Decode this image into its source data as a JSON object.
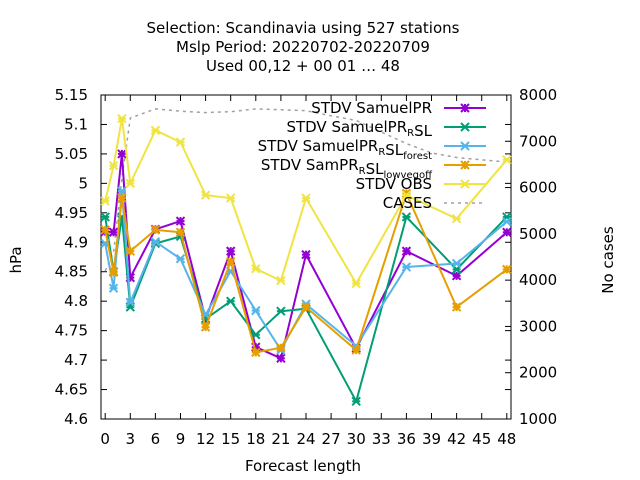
{
  "chart_data": {
    "type": "line",
    "title_lines": [
      "Selection: Scandinavia using   527 stations",
      "Mslp   Period: 20220702-20220709",
      "Used  00,12  + 00 01 … 48"
    ],
    "xlabel": "Forecast length",
    "ylabel": "hPa",
    "y2label": "No cases",
    "x_ticks": [
      0,
      3,
      6,
      9,
      12,
      15,
      18,
      21,
      24,
      27,
      30,
      33,
      36,
      39,
      42,
      45,
      48
    ],
    "xlim": [
      -0.5,
      48.5
    ],
    "ylim": [
      4.6,
      5.15
    ],
    "y_ticks": [
      4.6,
      4.65,
      4.7,
      4.75,
      4.8,
      4.85,
      4.9,
      4.95,
      5,
      5.05,
      5.1,
      5.15
    ],
    "y2lim": [
      1000,
      8000
    ],
    "y2_ticks": [
      1000,
      2000,
      3000,
      4000,
      5000,
      6000,
      7000,
      8000
    ],
    "grid": false,
    "legend_position": "top-right",
    "x": [
      0,
      1,
      2,
      3,
      6,
      9,
      12,
      15,
      18,
      21,
      24,
      30,
      36,
      42,
      48
    ],
    "series": [
      {
        "name": "STDV SamuelPR",
        "legend_parts": [
          [
            "STDV SamuelPR",
            "n"
          ]
        ],
        "color": "#9400d3",
        "marker": "cross",
        "axis": "y",
        "values": [
          4.918,
          4.917,
          5.05,
          4.84,
          4.922,
          4.936,
          4.77,
          4.885,
          4.722,
          4.703,
          4.879,
          4.72,
          4.885,
          4.843,
          4.917
        ]
      },
      {
        "name": "STDV SamuelPR_RSL",
        "legend_parts": [
          [
            "STDV SamuelPR",
            "n"
          ],
          [
            "R",
            "sub"
          ],
          [
            "SL",
            "n"
          ]
        ],
        "color": "#009e73",
        "marker": "x",
        "axis": "y",
        "values": [
          4.943,
          4.85,
          4.943,
          4.79,
          4.898,
          4.91,
          4.77,
          4.8,
          4.743,
          4.783,
          4.787,
          4.63,
          4.943,
          4.854,
          4.943
        ]
      },
      {
        "name": "STDV SamuelPR_RSL_forest",
        "legend_parts": [
          [
            "STDV SamuelPR",
            "n"
          ],
          [
            "R",
            "sub"
          ],
          [
            "SL",
            "n"
          ],
          [
            "forest",
            "sub"
          ]
        ],
        "color": "#56b4e9",
        "marker": "x",
        "axis": "y",
        "values": [
          4.898,
          4.822,
          4.987,
          4.798,
          4.901,
          4.872,
          4.777,
          4.851,
          4.784,
          4.717,
          4.795,
          4.724,
          4.858,
          4.864,
          4.935
        ]
      },
      {
        "name": "STDV SamPR_RSL_lowvegoff",
        "legend_parts": [
          [
            "STDV SamPR",
            "n"
          ],
          [
            "R",
            "sub"
          ],
          [
            "SL",
            "n"
          ],
          [
            "lowvegoff",
            "sub"
          ]
        ],
        "color": "#e69f00",
        "marker": "cross",
        "axis": "y",
        "values": [
          4.921,
          4.849,
          4.975,
          4.885,
          4.921,
          4.917,
          4.756,
          4.867,
          4.713,
          4.721,
          4.79,
          4.717,
          4.983,
          4.79,
          4.854
        ]
      },
      {
        "name": "STDV OBS",
        "legend_parts": [
          [
            "STDV OBS",
            "n"
          ]
        ],
        "color": "#f0e442",
        "marker": "x",
        "axis": "y",
        "values": [
          4.97,
          5.03,
          5.11,
          5.0,
          5.09,
          5.07,
          4.98,
          4.975,
          4.855,
          4.835,
          4.975,
          4.83,
          4.98,
          4.94,
          5.04
        ]
      },
      {
        "name": "CASES",
        "legend_parts": [
          [
            "CASES",
            "n"
          ]
        ],
        "color": "#a0a0a0",
        "marker": "none",
        "dashed": true,
        "axis": "y2",
        "x": [
          0,
          1,
          2,
          3,
          6,
          9,
          12,
          15,
          18,
          21,
          24,
          27,
          30,
          33,
          36,
          39,
          42,
          45,
          48
        ],
        "values": [
          4200,
          4600,
          6200,
          7500,
          7700,
          7650,
          7620,
          7640,
          7700,
          7680,
          7660,
          7550,
          7450,
          7200,
          6950,
          6750,
          6650,
          6600,
          6550
        ]
      }
    ]
  }
}
